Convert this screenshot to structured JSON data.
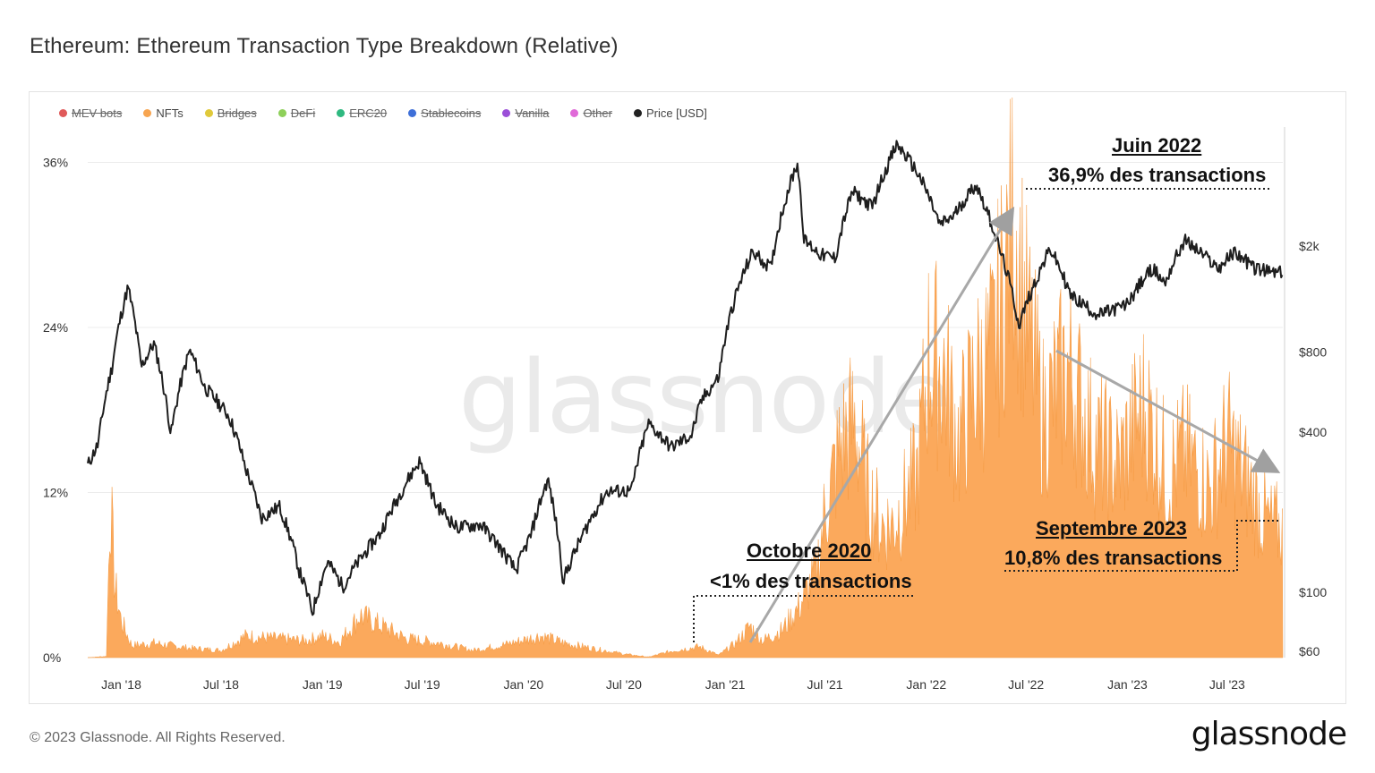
{
  "title": "Ethereum: Ethereum Transaction Type Breakdown (Relative)",
  "legend": [
    {
      "label": "MEV bots",
      "color": "#e05a5a",
      "active": false
    },
    {
      "label": "NFTs",
      "color": "#f7a551",
      "active": true
    },
    {
      "label": "Bridges",
      "color": "#e0c93a",
      "active": false
    },
    {
      "label": "DeFi",
      "color": "#8ed05a",
      "active": false
    },
    {
      "label": "ERC20",
      "color": "#2fb980",
      "active": false
    },
    {
      "label": "Stablecoins",
      "color": "#3e6fd8",
      "active": false
    },
    {
      "label": "Vanilla",
      "color": "#9b4fd8",
      "active": false
    },
    {
      "label": "Other",
      "color": "#e06ad8",
      "active": false
    },
    {
      "label": "Price [USD]",
      "color": "#222222",
      "active": true
    }
  ],
  "watermark": "glassnode",
  "annotations": {
    "peak_title": "Juin 2022",
    "peak_text": "36,9% des transactions",
    "sep_title": "Septembre 2023",
    "sep_text": "10,8% des transactions",
    "oct_title": "Octobre 2020",
    "oct_text": "<1% des transactions"
  },
  "footer": "© 2023 Glassnode. All Rights Reserved.",
  "brand": "glassnode",
  "chart_data": {
    "type": "area",
    "x_range": [
      "2017-11-01",
      "2023-10-10"
    ],
    "x_tick_labels": [
      "Jan '18",
      "Jul '18",
      "Jan '19",
      "Jul '19",
      "Jan '20",
      "Jul '20",
      "Jan '21",
      "Jul '21",
      "Jan '22",
      "Jul '22",
      "Jan '23",
      "Jul '23"
    ],
    "y_left": {
      "ticks": [
        "0%",
        "12%",
        "24%",
        "36%"
      ],
      "tick_values": [
        0,
        12,
        24,
        36
      ],
      "range": [
        0,
        38.7
      ]
    },
    "y_right": {
      "scale": "log",
      "ticks": [
        "$60",
        "$100",
        "$400",
        "$800",
        "$2k"
      ],
      "tick_values": [
        60,
        100,
        400,
        800,
        2000
      ]
    },
    "series": [
      {
        "name": "NFTs",
        "axis": "left",
        "unit": "%",
        "points": [
          [
            "2017-11-01",
            0
          ],
          [
            "2017-12-05",
            0.1
          ],
          [
            "2017-12-12",
            13.5
          ],
          [
            "2017-12-20",
            6
          ],
          [
            "2018-01-01",
            3
          ],
          [
            "2018-01-20",
            1
          ],
          [
            "2018-03-01",
            1.2
          ],
          [
            "2018-05-01",
            0.8
          ],
          [
            "2018-07-01",
            0.6
          ],
          [
            "2018-08-15",
            1.8
          ],
          [
            "2018-10-01",
            1.6
          ],
          [
            "2018-12-01",
            1.4
          ],
          [
            "2019-01-01",
            1.8
          ],
          [
            "2019-02-01",
            1.3
          ],
          [
            "2019-03-10",
            3.5
          ],
          [
            "2019-04-15",
            2.7
          ],
          [
            "2019-06-01",
            1.6
          ],
          [
            "2019-08-01",
            1.2
          ],
          [
            "2019-10-01",
            0.6
          ],
          [
            "2019-12-01",
            1.1
          ],
          [
            "2020-02-01",
            1.8
          ],
          [
            "2020-03-15",
            1.2
          ],
          [
            "2020-05-01",
            0.8
          ],
          [
            "2020-07-01",
            0.3
          ],
          [
            "2020-08-15",
            0.05
          ],
          [
            "2020-10-01",
            0.6
          ],
          [
            "2020-11-15",
            0.9
          ],
          [
            "2020-12-20",
            0.2
          ],
          [
            "2021-01-20",
            1.2
          ],
          [
            "2021-02-15",
            2.6
          ],
          [
            "2021-03-10",
            1.4
          ],
          [
            "2021-04-15",
            2.3
          ],
          [
            "2021-05-15",
            4.2
          ],
          [
            "2021-06-15",
            7
          ],
          [
            "2021-07-01",
            12
          ],
          [
            "2021-08-01",
            18
          ],
          [
            "2021-08-25",
            19.5
          ],
          [
            "2021-09-15",
            14
          ],
          [
            "2021-10-10",
            11
          ],
          [
            "2021-11-01",
            11
          ],
          [
            "2021-12-15",
            15
          ],
          [
            "2022-01-05",
            25
          ],
          [
            "2022-02-01",
            24
          ],
          [
            "2022-03-01",
            18
          ],
          [
            "2022-04-01",
            23
          ],
          [
            "2022-05-01",
            25
          ],
          [
            "2022-06-10",
            36.9
          ],
          [
            "2022-07-01",
            28
          ],
          [
            "2022-08-01",
            20
          ],
          [
            "2022-09-15",
            24
          ],
          [
            "2022-11-01",
            18
          ],
          [
            "2022-12-15",
            16
          ],
          [
            "2023-02-01",
            21
          ],
          [
            "2023-03-15",
            15
          ],
          [
            "2023-04-15",
            17
          ],
          [
            "2023-06-01",
            14
          ],
          [
            "2023-07-01",
            18
          ],
          [
            "2023-08-01",
            15
          ],
          [
            "2023-09-01",
            12
          ],
          [
            "2023-09-20",
            10.8
          ],
          [
            "2023-10-10",
            10.8
          ]
        ]
      },
      {
        "name": "Price [USD]",
        "axis": "right",
        "unit": "USD",
        "points": [
          [
            "2017-11-01",
            300
          ],
          [
            "2017-11-20",
            360
          ],
          [
            "2017-12-15",
            700
          ],
          [
            "2018-01-13",
            1400
          ],
          [
            "2018-02-06",
            700
          ],
          [
            "2018-03-01",
            860
          ],
          [
            "2018-04-01",
            390
          ],
          [
            "2018-05-05",
            810
          ],
          [
            "2018-06-01",
            590
          ],
          [
            "2018-07-15",
            460
          ],
          [
            "2018-08-15",
            290
          ],
          [
            "2018-09-12",
            190
          ],
          [
            "2018-10-15",
            210
          ],
          [
            "2018-11-20",
            120
          ],
          [
            "2018-12-14",
            84
          ],
          [
            "2019-01-10",
            130
          ],
          [
            "2019-02-07",
            105
          ],
          [
            "2019-03-15",
            137
          ],
          [
            "2019-04-15",
            165
          ],
          [
            "2019-05-15",
            220
          ],
          [
            "2019-06-26",
            310
          ],
          [
            "2019-07-25",
            215
          ],
          [
            "2019-09-01",
            175
          ],
          [
            "2019-10-15",
            180
          ],
          [
            "2019-12-18",
            120
          ],
          [
            "2020-01-15",
            165
          ],
          [
            "2020-02-14",
            265
          ],
          [
            "2020-03-13",
            110
          ],
          [
            "2020-04-15",
            160
          ],
          [
            "2020-06-01",
            240
          ],
          [
            "2020-07-15",
            240
          ],
          [
            "2020-08-15",
            430
          ],
          [
            "2020-09-25",
            350
          ],
          [
            "2020-11-01",
            390
          ],
          [
            "2020-11-20",
            530
          ],
          [
            "2020-12-20",
            640
          ],
          [
            "2021-01-15",
            1200
          ],
          [
            "2021-02-20",
            1900
          ],
          [
            "2021-03-25",
            1650
          ],
          [
            "2021-05-12",
            4100
          ],
          [
            "2021-05-24",
            2100
          ],
          [
            "2021-06-25",
            1850
          ],
          [
            "2021-07-20",
            1800
          ],
          [
            "2021-08-20",
            3200
          ],
          [
            "2021-09-25",
            2800
          ],
          [
            "2021-11-09",
            4800
          ],
          [
            "2021-12-15",
            3800
          ],
          [
            "2022-01-25",
            2400
          ],
          [
            "2022-02-20",
            2600
          ],
          [
            "2022-04-01",
            3400
          ],
          [
            "2022-05-12",
            2000
          ],
          [
            "2022-06-18",
            1000
          ],
          [
            "2022-07-20",
            1500
          ],
          [
            "2022-08-14",
            1950
          ],
          [
            "2022-09-20",
            1300
          ],
          [
            "2022-11-09",
            1100
          ],
          [
            "2022-12-30",
            1200
          ],
          [
            "2023-02-15",
            1650
          ],
          [
            "2023-03-10",
            1450
          ],
          [
            "2023-04-15",
            2100
          ],
          [
            "2023-06-15",
            1650
          ],
          [
            "2023-07-15",
            1900
          ],
          [
            "2023-08-20",
            1650
          ],
          [
            "2023-09-15",
            1600
          ],
          [
            "2023-10-10",
            1580
          ]
        ]
      }
    ]
  }
}
